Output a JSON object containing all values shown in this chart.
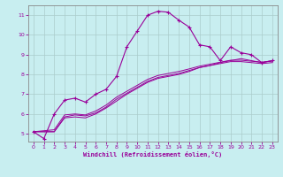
{
  "xlabel": "Windchill (Refroidissement éolien,°C)",
  "bg_color": "#c8eef0",
  "line_color": "#990099",
  "grid_color": "#aacccc",
  "xlim": [
    -0.5,
    23.5
  ],
  "ylim": [
    4.6,
    11.5
  ],
  "xticks": [
    0,
    1,
    2,
    3,
    4,
    5,
    6,
    7,
    8,
    9,
    10,
    11,
    12,
    13,
    14,
    15,
    16,
    17,
    18,
    19,
    20,
    21,
    22,
    23
  ],
  "yticks": [
    5,
    6,
    7,
    8,
    9,
    10,
    11
  ],
  "curve1_x": [
    0,
    1,
    2,
    3,
    4,
    5,
    6,
    7,
    8,
    9,
    10,
    11,
    12,
    13,
    14,
    15,
    16,
    17,
    18,
    19,
    20,
    21,
    22,
    23
  ],
  "curve1_y": [
    5.1,
    4.75,
    6.0,
    6.7,
    6.8,
    6.6,
    7.0,
    7.25,
    7.9,
    9.4,
    10.2,
    11.0,
    11.2,
    11.15,
    10.75,
    10.4,
    9.5,
    9.4,
    8.7,
    9.4,
    9.1,
    9.0,
    8.6,
    8.7
  ],
  "curve2_x": [
    0,
    2,
    3,
    4,
    5,
    6,
    7,
    8,
    9,
    10,
    11,
    12,
    13,
    14,
    15,
    16,
    17,
    18,
    19,
    20,
    21,
    22,
    23
  ],
  "curve2_y": [
    5.1,
    5.1,
    5.8,
    5.85,
    5.8,
    6.0,
    6.3,
    6.65,
    7.0,
    7.3,
    7.6,
    7.8,
    7.9,
    8.0,
    8.15,
    8.35,
    8.45,
    8.6,
    8.7,
    8.8,
    8.7,
    8.6,
    8.7
  ],
  "curve3_x": [
    0,
    2,
    3,
    4,
    5,
    6,
    7,
    8,
    9,
    10,
    11,
    12,
    13,
    14,
    15,
    16,
    17,
    18,
    19,
    20,
    21,
    22,
    23
  ],
  "curve3_y": [
    5.1,
    5.1,
    5.85,
    5.95,
    5.9,
    6.05,
    6.35,
    6.75,
    7.05,
    7.35,
    7.65,
    7.85,
    7.95,
    8.05,
    8.2,
    8.35,
    8.45,
    8.55,
    8.65,
    8.65,
    8.6,
    8.55,
    8.6
  ],
  "curve4_x": [
    0,
    2,
    3,
    4,
    5,
    6,
    7,
    8,
    9,
    10,
    11,
    12,
    13,
    14,
    15,
    16,
    17,
    18,
    19,
    20,
    21,
    22,
    23
  ],
  "curve4_y": [
    5.1,
    5.2,
    5.95,
    6.0,
    5.95,
    6.15,
    6.45,
    6.85,
    7.15,
    7.45,
    7.75,
    7.95,
    8.05,
    8.15,
    8.28,
    8.42,
    8.52,
    8.62,
    8.72,
    8.72,
    8.67,
    8.62,
    8.67
  ]
}
